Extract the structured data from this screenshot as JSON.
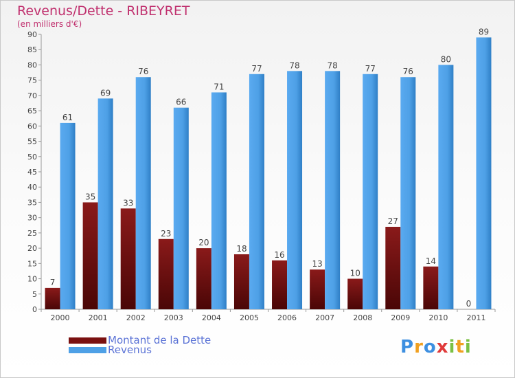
{
  "title": "Revenus/Dette - RIBEYRET",
  "subtitle": "(en milliers d'€)",
  "colors": {
    "debt": "#7a1010",
    "revenue": "#4ea0e6",
    "title": "#c0306e",
    "legend_text": "#5b73d6"
  },
  "legend": [
    {
      "label": "Montant de la Dette",
      "color": "#7a1010"
    },
    {
      "label": "Revenus",
      "color": "#4ea0e6"
    }
  ],
  "logo": {
    "text": "Proxiti",
    "letters": [
      "P",
      "r",
      "o",
      "x",
      "i",
      "t",
      "i"
    ]
  },
  "chart_data": {
    "type": "bar",
    "categories": [
      "2000",
      "2001",
      "2002",
      "2003",
      "2004",
      "2005",
      "2006",
      "2007",
      "2008",
      "2009",
      "2010",
      "2011"
    ],
    "series": [
      {
        "name": "Montant de la Dette",
        "values": [
          7,
          35,
          33,
          23,
          20,
          18,
          16,
          13,
          10,
          27,
          14,
          0
        ]
      },
      {
        "name": "Revenus",
        "values": [
          61,
          69,
          76,
          66,
          71,
          77,
          78,
          78,
          77,
          76,
          80,
          89
        ]
      }
    ],
    "yticks": [
      0,
      5,
      10,
      15,
      20,
      25,
      30,
      35,
      40,
      45,
      50,
      55,
      60,
      65,
      70,
      75,
      80,
      85,
      90
    ],
    "ylim": [
      0,
      90
    ],
    "grid": false,
    "data_labels": true,
    "legend_position": "bottom-left"
  }
}
